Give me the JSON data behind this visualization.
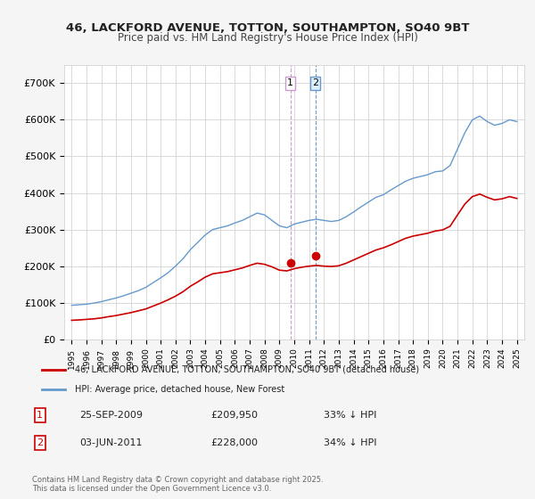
{
  "title_line1": "46, LACKFORD AVENUE, TOTTON, SOUTHAMPTON, SO40 9BT",
  "title_line2": "Price paid vs. HM Land Registry's House Price Index (HPI)",
  "legend_label_red": "46, LACKFORD AVENUE, TOTTON, SOUTHAMPTON, SO40 9BT (detached house)",
  "legend_label_blue": "HPI: Average price, detached house, New Forest",
  "transaction1_label": "1",
  "transaction1_date": "25-SEP-2009",
  "transaction1_price": "£209,950",
  "transaction1_note": "33% ↓ HPI",
  "transaction2_label": "2",
  "transaction2_date": "03-JUN-2011",
  "transaction2_price": "£228,000",
  "transaction2_note": "34% ↓ HPI",
  "copyright_text": "Contains HM Land Registry data © Crown copyright and database right 2025.\nThis data is licensed under the Open Government Licence v3.0.",
  "background_color": "#f5f5f5",
  "plot_bg_color": "#ffffff",
  "red_color": "#cc0000",
  "blue_color": "#6699cc",
  "marker1_x": 2009.73,
  "marker2_x": 2011.42,
  "marker1_y": 209950,
  "marker2_y": 228000,
  "vline1_x": 2009.73,
  "vline2_x": 2011.42,
  "ylim": [
    0,
    750000
  ],
  "xlim_start": 1994.5,
  "xlim_end": 2025.5
}
